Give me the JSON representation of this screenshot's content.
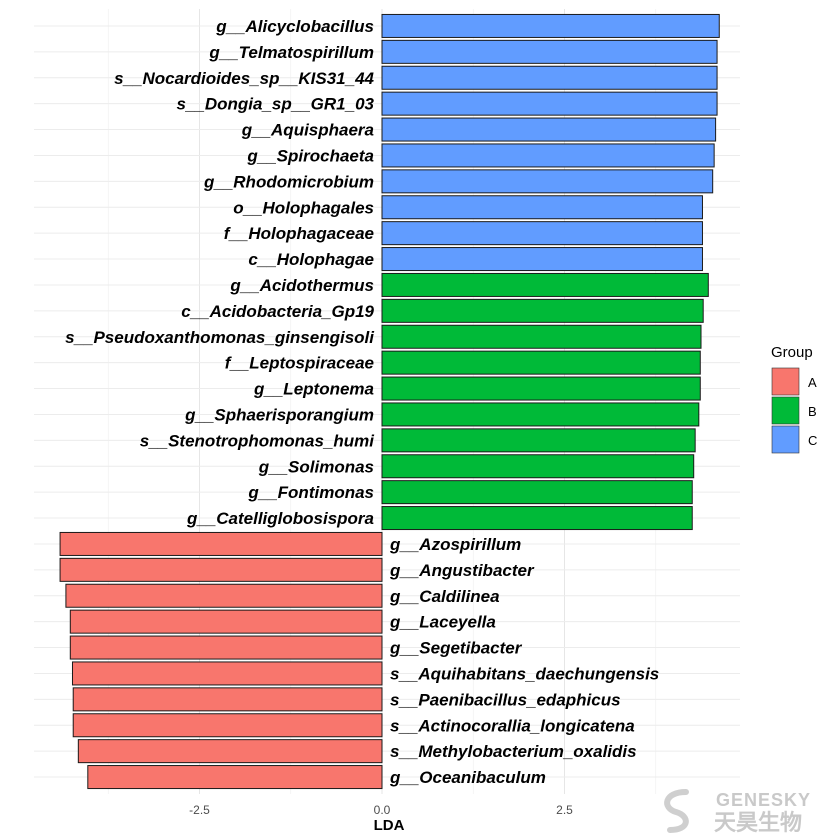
{
  "chart_data": {
    "type": "bar",
    "orientation": "horizontal",
    "xlabel": "LDA",
    "ylabel": "",
    "xlim": [
      -4.1,
      4.1
    ],
    "x_ticks": [
      -2.5,
      0.0,
      2.5
    ],
    "x_tick_labels": [
      "-2.5",
      "0.0",
      "2.5"
    ],
    "grid": true,
    "legend": {
      "title": "Group",
      "position": "right",
      "entries": [
        {
          "label": "A",
          "color": "#F8766D"
        },
        {
          "label": "B",
          "color": "#00BA38"
        },
        {
          "label": "C",
          "color": "#619CFF"
        }
      ]
    },
    "bars": [
      {
        "label": "g__Alicyclobacillus",
        "value": 4.62,
        "group": "C"
      },
      {
        "label": "g__Telmatospirillum",
        "value": 4.59,
        "group": "C"
      },
      {
        "label": "s__Nocardioides_sp__KIS31_44",
        "value": 4.59,
        "group": "C"
      },
      {
        "label": "s__Dongia_sp__GR1_03",
        "value": 4.59,
        "group": "C"
      },
      {
        "label": "g__Aquisphaera",
        "value": 4.57,
        "group": "C"
      },
      {
        "label": "g__Spirochaeta",
        "value": 4.55,
        "group": "C"
      },
      {
        "label": "g__Rhodomicrobium",
        "value": 4.53,
        "group": "C"
      },
      {
        "label": "o__Holophagales",
        "value": 4.39,
        "group": "C"
      },
      {
        "label": "f__Holophagaceae",
        "value": 4.39,
        "group": "C"
      },
      {
        "label": "c__Holophagae",
        "value": 4.39,
        "group": "C"
      },
      {
        "label": "g__Acidothermus",
        "value": 4.47,
        "group": "B"
      },
      {
        "label": "c__Acidobacteria_Gp19",
        "value": 4.4,
        "group": "B"
      },
      {
        "label": "s__Pseudoxanthomonas_ginsengisoli",
        "value": 4.37,
        "group": "B"
      },
      {
        "label": "f__Leptospiraceae",
        "value": 4.36,
        "group": "B"
      },
      {
        "label": "g__Leptonema",
        "value": 4.36,
        "group": "B"
      },
      {
        "label": "g__Sphaerisporangium",
        "value": 4.34,
        "group": "B"
      },
      {
        "label": "s__Stenotrophomonas_humi",
        "value": 4.29,
        "group": "B"
      },
      {
        "label": "g__Solimonas",
        "value": 4.27,
        "group": "B"
      },
      {
        "label": "g__Fontimonas",
        "value": 4.25,
        "group": "B"
      },
      {
        "label": "g__Catelliglobosispora",
        "value": 4.25,
        "group": "B"
      },
      {
        "label": "g__Azospirillum",
        "value": -4.41,
        "group": "A"
      },
      {
        "label": "g__Angustibacter",
        "value": -4.41,
        "group": "A"
      },
      {
        "label": "g__Caldilinea",
        "value": -4.33,
        "group": "A"
      },
      {
        "label": "g__Laceyella",
        "value": -4.27,
        "group": "A"
      },
      {
        "label": "g__Segetibacter",
        "value": -4.27,
        "group": "A"
      },
      {
        "label": "s__Aquihabitans_daechungensis",
        "value": -4.24,
        "group": "A"
      },
      {
        "label": "s__Paenibacillus_edaphicus",
        "value": -4.23,
        "group": "A"
      },
      {
        "label": "s__Actinocorallia_longicatena",
        "value": -4.23,
        "group": "A"
      },
      {
        "label": "s__Methylobacterium_oxalidis",
        "value": -4.16,
        "group": "A"
      },
      {
        "label": "g__Oceanibaculum",
        "value": -4.03,
        "group": "A"
      }
    ]
  },
  "watermark": {
    "text_en": "GENESKY",
    "text_cn": "天昊生物"
  }
}
